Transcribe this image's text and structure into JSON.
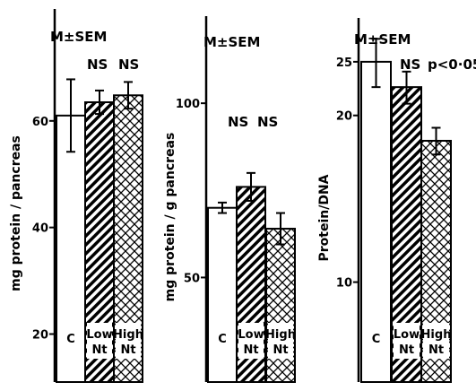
{
  "chart_data": [
    {
      "type": "bar",
      "categories": [
        "C",
        "Low Nt",
        "High Nt"
      ],
      "values": [
        61,
        63.5,
        64.8
      ],
      "errors": [
        6.8,
        2.2,
        2.5
      ],
      "ylabel": "mg protein / pancreas",
      "ylim": [
        11,
        81
      ],
      "yticks": [
        20,
        40,
        60
      ],
      "yticklabels": [
        "20",
        "40",
        "60"
      ],
      "annotations": [
        "M±SEM",
        "NS",
        "NS"
      ]
    },
    {
      "type": "bar",
      "categories": [
        "C",
        "Low Nt",
        "High Nt"
      ],
      "values": [
        70,
        76,
        64
      ],
      "errors": [
        1.5,
        4,
        4.5
      ],
      "ylabel": "mg protein / g pancreas",
      "ylim": [
        20,
        125
      ],
      "yticks": [
        50,
        100
      ],
      "yticklabels": [
        "50",
        "100"
      ],
      "annotations": [
        "M±SEM",
        "NS",
        "NS"
      ]
    },
    {
      "type": "bar",
      "scale": "log",
      "categories": [
        "C",
        "Low Nt",
        "High Nt"
      ],
      "values": [
        25,
        22.5,
        18
      ],
      "errors": [
        2.5,
        1.5,
        1
      ],
      "ylabel": "Protein/DNA",
      "ylim": [
        6.6,
        30
      ],
      "yticks": [
        10,
        20,
        25
      ],
      "yticklabels": [
        "10",
        "20",
        "25"
      ],
      "annotations": [
        "M±SEM",
        "NS",
        "p<0·05"
      ]
    }
  ]
}
